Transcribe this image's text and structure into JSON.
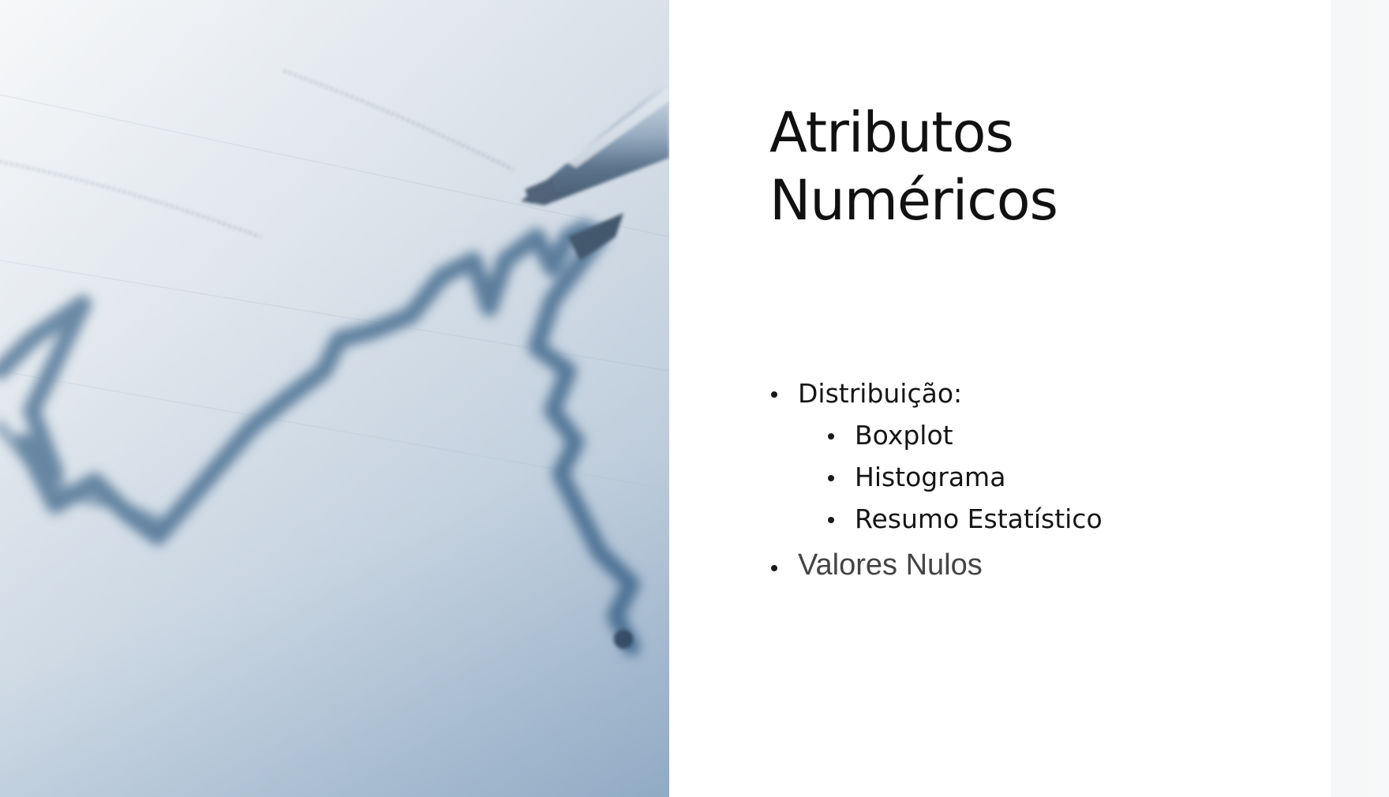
{
  "slide": {
    "title_lines": [
      "Atributos",
      "Numéricos"
    ],
    "bullets": [
      {
        "text": "Distribuição:",
        "level": 1
      },
      {
        "text": "Boxplot",
        "level": 2
      },
      {
        "text": "Histograma",
        "level": 2
      },
      {
        "text": "Resumo Estatístico",
        "level": 2
      },
      {
        "text": "Valores Nulos",
        "level": 1
      }
    ]
  },
  "colors": {
    "accent_blue": "#3f6a96",
    "title_text": "#111111",
    "muted_text": "#444444"
  },
  "icons": {
    "photo": "stock-chart-with-pen-photo"
  }
}
